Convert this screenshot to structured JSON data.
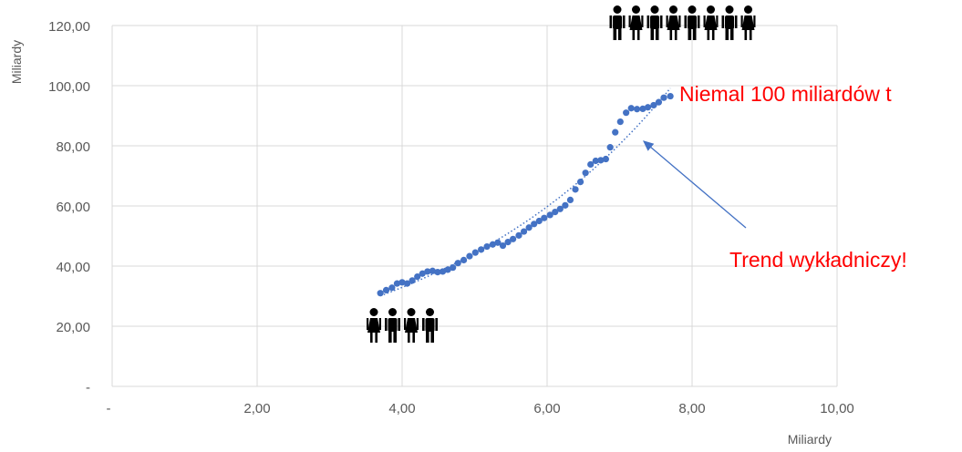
{
  "chart_data": {
    "type": "scatter",
    "xlabel": "Miliardy",
    "ylabel": "Miliardy",
    "xlim": [
      0,
      10
    ],
    "ylim": [
      0,
      120
    ],
    "x_ticks": [
      "-",
      "2,00",
      "4,00",
      "6,00",
      "8,00",
      "10,00"
    ],
    "y_ticks": [
      "-",
      "20,00",
      "40,00",
      "60,00",
      "80,00",
      "100,00",
      "120,00"
    ],
    "grid": true,
    "colors": {
      "points": "#4472c4",
      "trendline": "#4472c4",
      "annotation": "#ff0000",
      "arrow": "#4472c4"
    },
    "series": [
      {
        "x": [
          3.7,
          3.78,
          3.86,
          3.93,
          4.0,
          4.07,
          4.14,
          4.21,
          4.28,
          4.35,
          4.42,
          4.49,
          4.56,
          4.63,
          4.7,
          4.77,
          4.85,
          4.93,
          5.01,
          5.09,
          5.17,
          5.25,
          5.32,
          5.39,
          5.46,
          5.53,
          5.61,
          5.68,
          5.75,
          5.82,
          5.89,
          5.96,
          6.04,
          6.11,
          6.18,
          6.25,
          6.32,
          6.39,
          6.46,
          6.53,
          6.6,
          6.67,
          6.74,
          6.81,
          6.87,
          6.94,
          7.01,
          7.09,
          7.16,
          7.24,
          7.32,
          7.39,
          7.47,
          7.54,
          7.61,
          7.7
        ],
        "y": [
          31.0,
          32.0,
          32.8,
          34.2,
          34.6,
          34.2,
          35.2,
          36.5,
          37.5,
          38.2,
          38.4,
          38.0,
          38.2,
          38.8,
          39.5,
          41.0,
          42.0,
          43.3,
          44.5,
          45.5,
          46.5,
          47.2,
          47.8,
          46.8,
          48.0,
          49.0,
          50.2,
          51.5,
          52.8,
          54.0,
          55.0,
          56.0,
          57.0,
          58.0,
          59.0,
          60.2,
          62.0,
          65.5,
          68.0,
          71.0,
          73.8,
          75.0,
          75.2,
          75.6,
          79.5,
          84.5,
          88.0,
          91.0,
          92.5,
          92.2,
          92.3,
          92.8,
          93.5,
          94.5,
          96.0,
          96.5
        ]
      }
    ],
    "trendline": {
      "type": "exponential",
      "style": "dotted",
      "label": "Trend wykładniczy!"
    },
    "annotations": [
      "Niemal 100 miliardów t",
      "Trend wykładniczy!"
    ]
  }
}
